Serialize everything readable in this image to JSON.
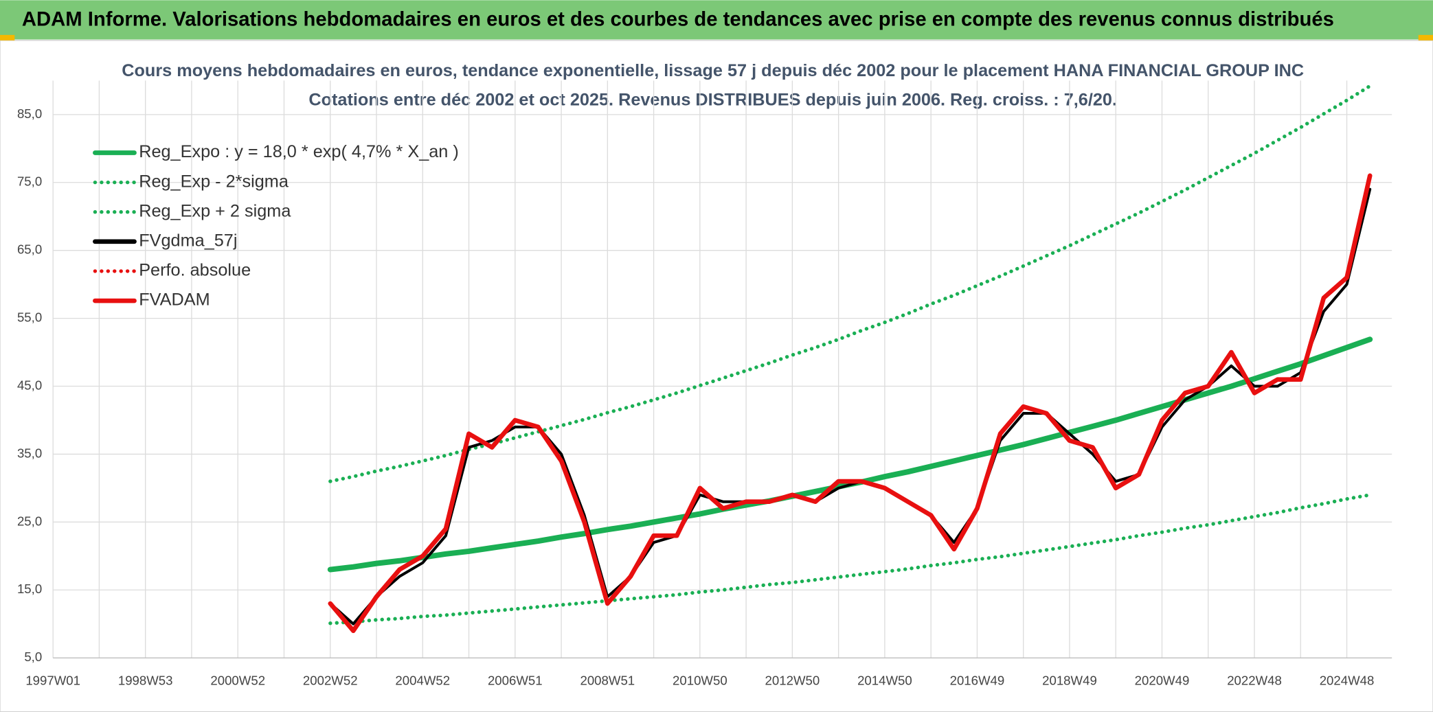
{
  "header": {
    "title": "ADAM Informe. Valorisations hebdomadaires en euros et des courbes de tendances avec prise en compte des revenus connus distribués"
  },
  "chart_data": {
    "type": "line",
    "title": "Cours moyens hebdomadaires en euros, tendance exponentielle, lissage 57 j depuis déc 2002 pour le placement HANA FINANCIAL GROUP INC",
    "subtitle": "Cotations entre déc 2002 et oct 2025. Revenus DISTRIBUES depuis juin 2006. Reg. croiss. : 7,6/20.",
    "categories": [
      "1997W01",
      null,
      null,
      null,
      "1998W53",
      null,
      null,
      null,
      "2000W52",
      null,
      null,
      null,
      "2002W52",
      null,
      null,
      null,
      "2004W52",
      null,
      null,
      null,
      "2006W51",
      null,
      null,
      null,
      "2008W51",
      null,
      null,
      null,
      "2010W50",
      null,
      null,
      null,
      "2012W50",
      null,
      null,
      null,
      "2014W50",
      null,
      null,
      null,
      "2016W49",
      null,
      null,
      null,
      "2018W49",
      null,
      null,
      null,
      "2020W49",
      null,
      null,
      null,
      "2022W48",
      null,
      null,
      null,
      "2024W48",
      null
    ],
    "ylim": [
      5,
      90
    ],
    "yticks": [
      {
        "value": 5,
        "label": "5,0"
      },
      {
        "value": 15,
        "label": "15,0"
      },
      {
        "value": 25,
        "label": "25,0"
      },
      {
        "value": 35,
        "label": "35,0"
      },
      {
        "value": 45,
        "label": "45,0"
      },
      {
        "value": 55,
        "label": "55,0"
      },
      {
        "value": 65,
        "label": "65,0"
      },
      {
        "value": 75,
        "label": "75,0"
      },
      {
        "value": 85,
        "label": "85,0"
      }
    ],
    "grid": true,
    "legend": "upper left",
    "series": [
      {
        "name": "Reg_Expo : y = 18,0 * exp( 4,7% *  X_an )",
        "color": "#1aaf54",
        "style": "solid",
        "values": [
          null,
          null,
          null,
          null,
          null,
          null,
          null,
          null,
          null,
          null,
          null,
          null,
          18.0,
          18.4,
          18.9,
          19.3,
          19.8,
          20.3,
          20.7,
          21.2,
          21.7,
          22.2,
          22.8,
          23.3,
          23.9,
          24.4,
          25.0,
          25.6,
          26.2,
          26.9,
          27.5,
          28.1,
          28.8,
          29.5,
          30.2,
          30.9,
          31.7,
          32.4,
          33.2,
          34.0,
          34.8,
          35.6,
          36.4,
          37.3,
          38.2,
          39.1,
          40.0,
          41.0,
          42.0,
          43.0,
          44.0,
          45.0,
          46.1,
          47.2,
          48.3,
          49.5,
          50.7,
          51.9
        ]
      },
      {
        "name": "Reg_Exp - 2*sigma",
        "color": "#1aaf54",
        "style": "dotted",
        "values": [
          null,
          null,
          null,
          null,
          null,
          null,
          null,
          null,
          null,
          null,
          null,
          null,
          10.1,
          10.3,
          10.6,
          10.8,
          11.1,
          11.3,
          11.6,
          11.9,
          12.2,
          12.5,
          12.8,
          13.1,
          13.4,
          13.7,
          14.0,
          14.3,
          14.7,
          15.0,
          15.4,
          15.8,
          16.1,
          16.5,
          16.9,
          17.3,
          17.7,
          18.1,
          18.6,
          19.0,
          19.5,
          19.9,
          20.4,
          20.9,
          21.4,
          21.9,
          22.4,
          23.0,
          23.5,
          24.1,
          24.6,
          25.2,
          25.8,
          26.4,
          27.1,
          27.7,
          28.4,
          29.0
        ]
      },
      {
        "name": "Reg_Exp + 2 sigma",
        "color": "#1aaf54",
        "style": "dotted",
        "values": [
          null,
          null,
          null,
          null,
          null,
          null,
          null,
          null,
          null,
          null,
          null,
          null,
          31.0,
          31.7,
          32.5,
          33.2,
          34.0,
          34.8,
          35.7,
          36.5,
          37.4,
          38.3,
          39.2,
          40.1,
          41.1,
          42.0,
          43.0,
          44.0,
          45.1,
          46.2,
          47.3,
          48.4,
          49.6,
          50.7,
          51.9,
          53.2,
          54.4,
          55.7,
          57.1,
          58.4,
          59.8,
          61.2,
          62.7,
          64.2,
          65.7,
          67.3,
          68.9,
          70.5,
          72.2,
          73.9,
          75.7,
          77.5,
          79.3,
          81.2,
          83.1,
          85.1,
          87.1,
          89.2
        ]
      },
      {
        "name": "FVgdma_57j",
        "color": "#000000",
        "style": "solid",
        "values": [
          null,
          null,
          null,
          null,
          null,
          null,
          null,
          null,
          null,
          null,
          null,
          null,
          13,
          10,
          14,
          17,
          19,
          23,
          36,
          37,
          39,
          39,
          35,
          26,
          14,
          17,
          22,
          23,
          29,
          28,
          28,
          28,
          29,
          28,
          30,
          31,
          30,
          28,
          26,
          22,
          27,
          37,
          41,
          41,
          38,
          35,
          31,
          32,
          39,
          43,
          45,
          48,
          45,
          45,
          47,
          56,
          60,
          74
        ]
      },
      {
        "name": "Perfo. absolue",
        "color": "#e81010",
        "style": "dotted",
        "values": [
          null,
          null,
          null,
          null,
          null,
          null,
          null,
          null,
          null,
          null,
          null,
          null,
          13,
          9,
          14,
          18,
          20,
          24,
          38,
          36,
          40,
          39,
          34,
          25,
          13,
          17,
          23,
          23,
          30,
          27,
          28,
          28,
          29,
          28,
          31,
          31,
          30,
          28,
          26,
          21,
          27,
          38,
          42,
          41,
          37,
          36,
          30,
          32,
          40,
          44,
          45,
          50,
          44,
          46,
          46,
          58,
          61,
          76
        ]
      },
      {
        "name": "FVADAM",
        "color": "#e81010",
        "style": "solid",
        "values": [
          null,
          null,
          null,
          null,
          null,
          null,
          null,
          null,
          null,
          null,
          null,
          null,
          13,
          9,
          14,
          18,
          20,
          24,
          38,
          36,
          40,
          39,
          34,
          25,
          13,
          17,
          23,
          23,
          30,
          27,
          28,
          28,
          29,
          28,
          31,
          31,
          30,
          28,
          26,
          21,
          27,
          38,
          42,
          41,
          37,
          36,
          30,
          32,
          40,
          44,
          45,
          50,
          44,
          46,
          46,
          58,
          61,
          76
        ]
      }
    ]
  }
}
